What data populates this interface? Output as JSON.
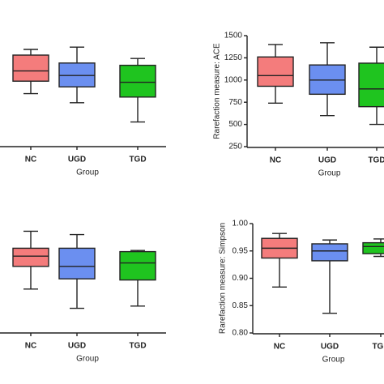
{
  "chart_data": [
    {
      "type": "box",
      "categories": [
        "NC",
        "UGD",
        "TGD"
      ],
      "colors": [
        "#f47c7c",
        "#6b8ff0",
        "#1fc41f"
      ],
      "x_label": "Group",
      "ylim": [
        0,
        100
      ],
      "stats": [
        {
          "min": 46,
          "q1": 57,
          "median": 66,
          "q3": 80,
          "max": 85
        },
        {
          "min": 38,
          "q1": 52,
          "median": 62,
          "q3": 73,
          "max": 87
        },
        {
          "min": 21,
          "q1": 43,
          "median": 56,
          "q3": 71,
          "max": 77
        }
      ]
    },
    {
      "type": "box",
      "categories": [
        "NC",
        "UGD",
        "TGD"
      ],
      "colors": [
        "#f47c7c",
        "#6b8ff0",
        "#1fc41f"
      ],
      "x_label": "Group",
      "y_label": "Rarefaction measure: ACE",
      "ylim": [
        250,
        1500
      ],
      "yticks": [
        250,
        500,
        750,
        1000,
        1250,
        1500
      ],
      "stats": [
        {
          "min": 740,
          "q1": 930,
          "median": 1050,
          "q3": 1260,
          "max": 1400
        },
        {
          "min": 600,
          "q1": 840,
          "median": 1000,
          "q3": 1170,
          "max": 1420
        },
        {
          "min": 500,
          "q1": 700,
          "median": 900,
          "q3": 1190,
          "max": 1370
        }
      ]
    },
    {
      "type": "box",
      "categories": [
        "NC",
        "UGD",
        "TGD"
      ],
      "colors": [
        "#f47c7c",
        "#6b8ff0",
        "#1fc41f"
      ],
      "x_label": "Group",
      "ylim": [
        0,
        100
      ],
      "stats": [
        {
          "min": 38,
          "q1": 58,
          "median": 67,
          "q3": 74,
          "max": 89
        },
        {
          "min": 21,
          "q1": 47,
          "median": 58,
          "q3": 74,
          "max": 86
        },
        {
          "min": 23,
          "q1": 46,
          "median": 61,
          "q3": 71,
          "max": 72
        }
      ]
    },
    {
      "type": "box",
      "categories": [
        "NC",
        "UGD",
        "TGD"
      ],
      "colors": [
        "#f47c7c",
        "#6b8ff0",
        "#1fc41f"
      ],
      "x_label": "Group",
      "y_label": "Rarefaction measure: Simpson",
      "ylim": [
        0.8,
        1.0
      ],
      "yticks": [
        {
          "value": 0.8,
          "label": "0.80"
        },
        {
          "value": 0.85,
          "label": "0.85"
        },
        {
          "value": 0.9,
          "label": "0.90"
        },
        {
          "value": 0.95,
          "label": "0.95"
        },
        {
          "value": 1.0,
          "label": "1.00"
        }
      ],
      "stats": [
        {
          "min": 0.884,
          "q1": 0.937,
          "median": 0.955,
          "q3": 0.973,
          "max": 0.982
        },
        {
          "min": 0.836,
          "q1": 0.932,
          "median": 0.95,
          "q3": 0.963,
          "max": 0.97
        },
        {
          "min": 0.94,
          "q1": 0.945,
          "median": 0.958,
          "q3": 0.965,
          "max": 0.972
        }
      ]
    }
  ]
}
